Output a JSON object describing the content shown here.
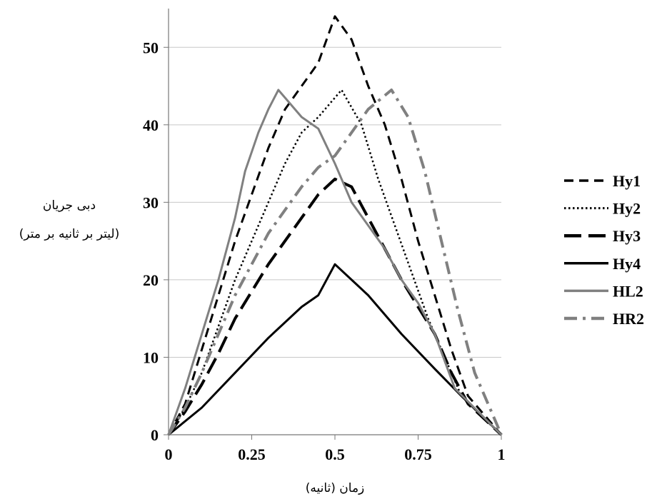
{
  "chart_data": {
    "type": "line",
    "title": "",
    "xlabel": "زمان (ثانیه)",
    "ylabel_line1": "دبی جریان",
    "ylabel_line2": "(لیتر بر ثانیه بر متر)",
    "xlim": [
      0,
      1
    ],
    "ylim": [
      0,
      55
    ],
    "x_ticks": [
      {
        "value": 0,
        "label": "0"
      },
      {
        "value": 0.25,
        "label": "0.25"
      },
      {
        "value": 0.5,
        "label": "0.5"
      },
      {
        "value": 0.75,
        "label": "0.75"
      },
      {
        "value": 1,
        "label": "1"
      }
    ],
    "y_ticks": [
      {
        "value": 0,
        "label": "0"
      },
      {
        "value": 10,
        "label": "10"
      },
      {
        "value": 20,
        "label": "20"
      },
      {
        "value": 30,
        "label": "30"
      },
      {
        "value": 40,
        "label": "40"
      },
      {
        "value": 50,
        "label": "50"
      }
    ],
    "grid": "horizontal",
    "legend_position": "right",
    "series": [
      {
        "name": "Hy1",
        "color": "#000000",
        "dash": "dashed",
        "points": [
          [
            0,
            0
          ],
          [
            0.05,
            4
          ],
          [
            0.1,
            11
          ],
          [
            0.15,
            18
          ],
          [
            0.2,
            25
          ],
          [
            0.25,
            31
          ],
          [
            0.3,
            37
          ],
          [
            0.35,
            42
          ],
          [
            0.4,
            45
          ],
          [
            0.45,
            48
          ],
          [
            0.5,
            54
          ],
          [
            0.55,
            51
          ],
          [
            0.6,
            45
          ],
          [
            0.65,
            40
          ],
          [
            0.7,
            33
          ],
          [
            0.75,
            25
          ],
          [
            0.8,
            18
          ],
          [
            0.85,
            11
          ],
          [
            0.9,
            5
          ],
          [
            1,
            0
          ]
        ]
      },
      {
        "name": "Hy2",
        "color": "#000000",
        "dash": "dotted",
        "points": [
          [
            0,
            0
          ],
          [
            0.05,
            3.5
          ],
          [
            0.1,
            8
          ],
          [
            0.15,
            14
          ],
          [
            0.2,
            20
          ],
          [
            0.25,
            25
          ],
          [
            0.3,
            30
          ],
          [
            0.35,
            35
          ],
          [
            0.4,
            39
          ],
          [
            0.45,
            41
          ],
          [
            0.52,
            44.5
          ],
          [
            0.58,
            40
          ],
          [
            0.63,
            33
          ],
          [
            0.68,
            27
          ],
          [
            0.73,
            21
          ],
          [
            0.78,
            15
          ],
          [
            0.83,
            10
          ],
          [
            0.88,
            5
          ],
          [
            0.95,
            2
          ],
          [
            1,
            0
          ]
        ]
      },
      {
        "name": "Hy3",
        "color": "#000000",
        "dash": "longdash",
        "points": [
          [
            0,
            0
          ],
          [
            0.05,
            3
          ],
          [
            0.1,
            6.5
          ],
          [
            0.15,
            10.5
          ],
          [
            0.2,
            15
          ],
          [
            0.25,
            18.5
          ],
          [
            0.3,
            22
          ],
          [
            0.35,
            25
          ],
          [
            0.4,
            28
          ],
          [
            0.45,
            31
          ],
          [
            0.5,
            33
          ],
          [
            0.55,
            32
          ],
          [
            0.6,
            28
          ],
          [
            0.65,
            24
          ],
          [
            0.7,
            20
          ],
          [
            0.75,
            16.5
          ],
          [
            0.8,
            13
          ],
          [
            0.85,
            8
          ],
          [
            0.9,
            4
          ],
          [
            1,
            0
          ]
        ]
      },
      {
        "name": "Hy4",
        "color": "#000000",
        "dash": "solid",
        "points": [
          [
            0,
            0
          ],
          [
            0.1,
            3.5
          ],
          [
            0.2,
            8
          ],
          [
            0.3,
            12.5
          ],
          [
            0.4,
            16.5
          ],
          [
            0.45,
            18
          ],
          [
            0.5,
            22
          ],
          [
            0.6,
            18
          ],
          [
            0.7,
            13
          ],
          [
            0.8,
            8.5
          ],
          [
            0.88,
            5
          ],
          [
            1,
            0
          ]
        ]
      },
      {
        "name": "HL2",
        "color": "#808080",
        "dash": "solid",
        "points": [
          [
            0,
            0
          ],
          [
            0.05,
            6
          ],
          [
            0.1,
            13
          ],
          [
            0.15,
            20
          ],
          [
            0.2,
            28
          ],
          [
            0.23,
            34
          ],
          [
            0.27,
            39
          ],
          [
            0.3,
            42
          ],
          [
            0.33,
            44.5
          ],
          [
            0.4,
            41
          ],
          [
            0.45,
            39.5
          ],
          [
            0.5,
            35
          ],
          [
            0.55,
            30
          ],
          [
            0.6,
            27
          ],
          [
            0.65,
            24
          ],
          [
            0.7,
            20
          ],
          [
            0.75,
            17
          ],
          [
            0.8,
            13
          ],
          [
            0.86,
            6
          ],
          [
            1,
            0
          ]
        ]
      },
      {
        "name": "HR2",
        "color": "#808080",
        "dash": "dashdot",
        "points": [
          [
            0,
            0
          ],
          [
            0.05,
            3.5
          ],
          [
            0.1,
            8
          ],
          [
            0.15,
            13
          ],
          [
            0.2,
            18
          ],
          [
            0.25,
            22
          ],
          [
            0.3,
            26
          ],
          [
            0.35,
            29
          ],
          [
            0.4,
            32
          ],
          [
            0.45,
            34.5
          ],
          [
            0.5,
            36
          ],
          [
            0.55,
            39
          ],
          [
            0.6,
            42
          ],
          [
            0.67,
            44.5
          ],
          [
            0.72,
            41
          ],
          [
            0.77,
            34
          ],
          [
            0.82,
            25
          ],
          [
            0.87,
            16
          ],
          [
            0.92,
            8
          ],
          [
            1,
            0
          ]
        ]
      }
    ]
  }
}
